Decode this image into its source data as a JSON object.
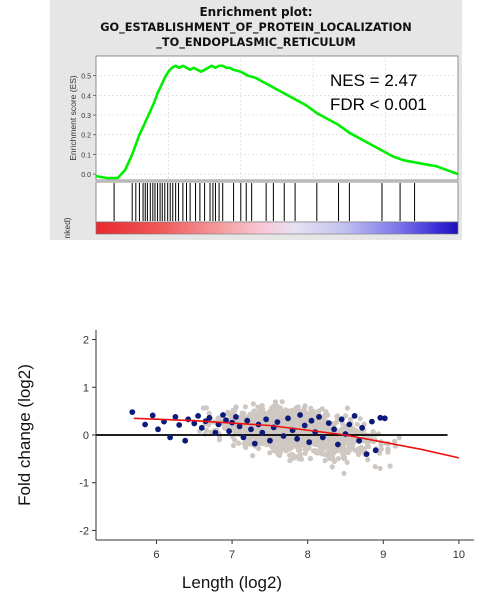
{
  "chart_data": [
    {
      "type": "line",
      "title": "Enrichment plot:",
      "subtitle_lines": [
        "GO_ESTABLISHMENT_OF_PROTEIN_LOCALIZATION",
        "_TO_ENDOPLASMIC_RETICULUM"
      ],
      "ylabel": "Enrichment score (ES)",
      "ranked_label": "nked)",
      "ylim": [
        -0.03,
        0.6
      ],
      "xlim": [
        0,
        100
      ],
      "y_ticks": [
        0.0,
        0.1,
        0.2,
        0.3,
        0.4,
        0.5
      ],
      "tick_labels": [
        "0.0",
        "0.1",
        "0.2",
        "0.3",
        "0.4",
        "0.5"
      ],
      "grid": true,
      "annotations": [
        "NES = 2.47",
        "FDR < 0.001"
      ],
      "series": [
        {
          "color": "#00ee00",
          "x": [
            0,
            3,
            6,
            7,
            8,
            9,
            10,
            11,
            12,
            13,
            14,
            15,
            16,
            17,
            18,
            19,
            20,
            21,
            22,
            23,
            24,
            25,
            26,
            27,
            28,
            29,
            30,
            31,
            32,
            33,
            34,
            35,
            36,
            37,
            38,
            40,
            42,
            44,
            46,
            48,
            50,
            52,
            55,
            58,
            61,
            64,
            67,
            70,
            73,
            76,
            79,
            82,
            85,
            88,
            91,
            94,
            97,
            100
          ],
          "values": [
            -0.01,
            -0.02,
            -0.02,
            0.0,
            0.02,
            0.06,
            0.1,
            0.15,
            0.2,
            0.24,
            0.28,
            0.32,
            0.36,
            0.41,
            0.45,
            0.49,
            0.52,
            0.54,
            0.55,
            0.54,
            0.55,
            0.54,
            0.53,
            0.54,
            0.53,
            0.52,
            0.53,
            0.54,
            0.55,
            0.54,
            0.55,
            0.55,
            0.54,
            0.54,
            0.53,
            0.52,
            0.5,
            0.49,
            0.47,
            0.45,
            0.43,
            0.41,
            0.38,
            0.35,
            0.31,
            0.28,
            0.25,
            0.21,
            0.18,
            0.15,
            0.12,
            0.09,
            0.07,
            0.06,
            0.05,
            0.04,
            0.02,
            0.0
          ]
        }
      ],
      "hits": [
        5,
        10,
        11,
        12,
        13,
        13.6,
        14.2,
        15,
        15.7,
        16.3,
        17,
        17.7,
        18.3,
        19,
        19.8,
        20.5,
        21.2,
        22,
        22.8,
        24,
        25,
        26,
        27.5,
        28.7,
        30,
        31.5,
        32.3,
        33,
        34,
        35,
        38,
        40,
        41.5,
        43,
        47,
        49,
        52,
        55,
        61,
        67,
        70,
        79,
        84,
        88
      ]
    },
    {
      "type": "scatter",
      "xlabel": "Length (log2)",
      "ylabel": "Fold change (log2)",
      "xlim": [
        5.2,
        10.2
      ],
      "ylim": [
        -2.2,
        2.2
      ],
      "x_ticks": [
        6,
        7,
        8,
        9,
        10
      ],
      "y_ticks": [
        -2,
        -1,
        0,
        1,
        2
      ],
      "x_tick_labels": [
        "6",
        "7",
        "8",
        "9",
        "10"
      ],
      "y_tick_labels": [
        "-2",
        "-1",
        "0",
        "1",
        "2"
      ],
      "background_color": "#cfc7c1",
      "highlight_color": "#0c1a7a",
      "trend_color": "#ee1111",
      "trend_line": {
        "x": [
          5.7,
          6.5,
          7.5,
          8.5,
          9.5,
          10.0
        ],
        "y": [
          0.35,
          0.3,
          0.2,
          0.0,
          -0.3,
          -0.48
        ]
      },
      "reference_line_y": 0,
      "highlighted_points": [
        [
          5.68,
          0.48
        ],
        [
          5.85,
          0.22
        ],
        [
          5.95,
          0.41
        ],
        [
          6.02,
          0.12
        ],
        [
          6.1,
          0.28
        ],
        [
          6.18,
          -0.05
        ],
        [
          6.25,
          0.38
        ],
        [
          6.3,
          0.21
        ],
        [
          6.38,
          -0.12
        ],
        [
          6.42,
          0.33
        ],
        [
          6.5,
          0.24
        ],
        [
          6.55,
          0.4
        ],
        [
          6.6,
          0.15
        ],
        [
          6.65,
          0.29
        ],
        [
          6.7,
          0.36
        ],
        [
          6.78,
          0.05
        ],
        [
          6.82,
          0.22
        ],
        [
          6.88,
          0.42
        ],
        [
          6.92,
          0.31
        ],
        [
          6.96,
          0.08
        ],
        [
          7.0,
          0.26
        ],
        [
          7.05,
          0.38
        ],
        [
          7.1,
          0.18
        ],
        [
          7.15,
          -0.05
        ],
        [
          7.2,
          0.3
        ],
        [
          7.25,
          0.12
        ],
        [
          7.3,
          -0.18
        ],
        [
          7.35,
          0.22
        ],
        [
          7.4,
          0.05
        ],
        [
          7.45,
          0.33
        ],
        [
          7.5,
          -0.12
        ],
        [
          7.55,
          0.16
        ],
        [
          7.6,
          0.27
        ],
        [
          7.68,
          -0.02
        ],
        [
          7.74,
          0.35
        ],
        [
          7.8,
          0.1
        ],
        [
          7.86,
          -0.08
        ],
        [
          7.9,
          0.42
        ],
        [
          7.96,
          0.2
        ],
        [
          8.02,
          -0.15
        ],
        [
          8.05,
          0.3
        ],
        [
          8.1,
          0.06
        ],
        [
          8.15,
          0.38
        ],
        [
          8.2,
          -0.05
        ],
        [
          8.28,
          0.25
        ],
        [
          8.35,
          0.12
        ],
        [
          8.4,
          -0.2
        ],
        [
          8.45,
          0.33
        ],
        [
          8.5,
          0.02
        ],
        [
          8.55,
          0.22
        ],
        [
          8.62,
          0.4
        ],
        [
          8.68,
          -0.12
        ],
        [
          8.72,
          0.15
        ],
        [
          8.78,
          -0.4
        ],
        [
          8.85,
          0.28
        ],
        [
          8.9,
          -0.32
        ],
        [
          8.96,
          0.36
        ],
        [
          9.02,
          0.35
        ]
      ]
    }
  ]
}
